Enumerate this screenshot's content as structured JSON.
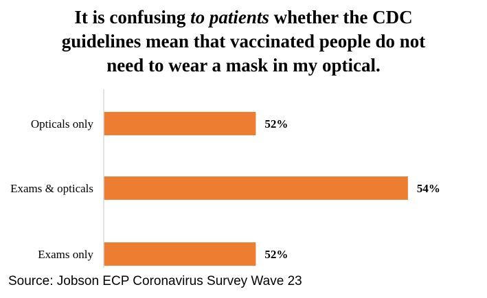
{
  "title": {
    "line1_pre": "It is confusing ",
    "line1_italic": "to patients",
    "line1_post": " whether the CDC",
    "line2": "guidelines mean that vaccinated people do not",
    "line3": "need to wear a mask in my optical."
  },
  "source": "Source: Jobson ECP Coronavirus Survey Wave 23",
  "chart_data": {
    "type": "bar",
    "orientation": "horizontal",
    "categories": [
      "Opticals only",
      "Exams & opticals",
      "Exams only"
    ],
    "values": [
      52,
      54,
      52
    ],
    "value_labels": [
      "52%",
      "54%",
      "52%"
    ],
    "xlim": [
      50,
      54.2
    ],
    "bar_color": "#ED7D31",
    "axis_color": "#D9D9D9",
    "grid": false
  }
}
